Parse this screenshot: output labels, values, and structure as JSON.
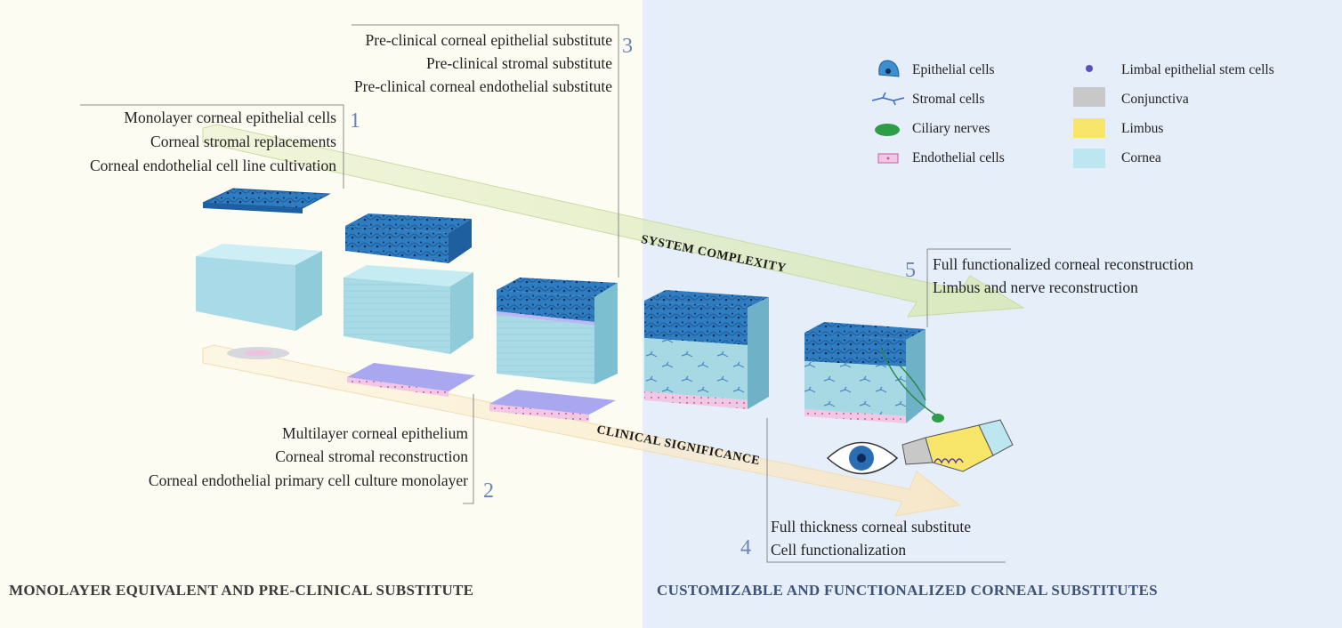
{
  "groups": {
    "g1": {
      "number": "1",
      "lines": [
        "Monolayer  corneal epithelial cells",
        "Corneal stromal replacements",
        "Corneal endothelial cell line cultivation"
      ]
    },
    "g2": {
      "number": "2",
      "lines": [
        "Multilayer corneal epithelium",
        "Corneal stromal reconstruction",
        "Corneal endothelial primary cell culture monolayer"
      ]
    },
    "g3": {
      "number": "3",
      "lines": [
        "Pre-clinical corneal epithelial substitute",
        "Pre-clinical stromal substitute",
        "Pre-clinical corneal endothelial substitute"
      ]
    },
    "g4": {
      "number": "4",
      "lines": [
        "Full thickness corneal substitute",
        "Cell functionalization"
      ]
    },
    "g5": {
      "number": "5",
      "lines": [
        "Full functionalized corneal reconstruction",
        "Limbus and nerve reconstruction"
      ]
    }
  },
  "arrows": {
    "system": "SYSTEM COMPLEXITY",
    "clinical": "CLINICAL SIGNIFICANCE"
  },
  "legend": [
    {
      "label": "Epithelial cells",
      "icon": "epithelial-cell-icon"
    },
    {
      "label": "Stromal cells",
      "icon": "stromal-cell-icon"
    },
    {
      "label": "Ciliary nerves",
      "icon": "ciliary-nerve-icon"
    },
    {
      "label": "Endothelial cells",
      "icon": "endothelial-cell-icon"
    },
    {
      "label": "Limbal epithelial stem cells",
      "icon": "stem-cell-icon"
    },
    {
      "label": "Conjunctiva",
      "icon": "conjunctiva-swatch",
      "color": "#c8c8c8"
    },
    {
      "label": "Limbus",
      "icon": "limbus-swatch",
      "color": "#f7e66a"
    },
    {
      "label": "Cornea",
      "icon": "cornea-swatch",
      "color": "#bde7f0"
    }
  ],
  "footer": {
    "left": "MONOLAYER EQUIVALENT AND PRE-CLINICAL SUBSTITUTE",
    "right": "CUSTOMIZABLE AND FUNCTIONALIZED CORNEAL SUBSTITUTES"
  },
  "colors": {
    "left_bg": "#fdfcf3",
    "right_bg": "#e6eef9",
    "epithelium": "#2f7cc0",
    "stroma": "#a9dbe6",
    "endothelium": "#ecc1e0",
    "number": "#6b83b6",
    "footer_left": "#3a3a3a",
    "footer_right": "#3e5278"
  }
}
